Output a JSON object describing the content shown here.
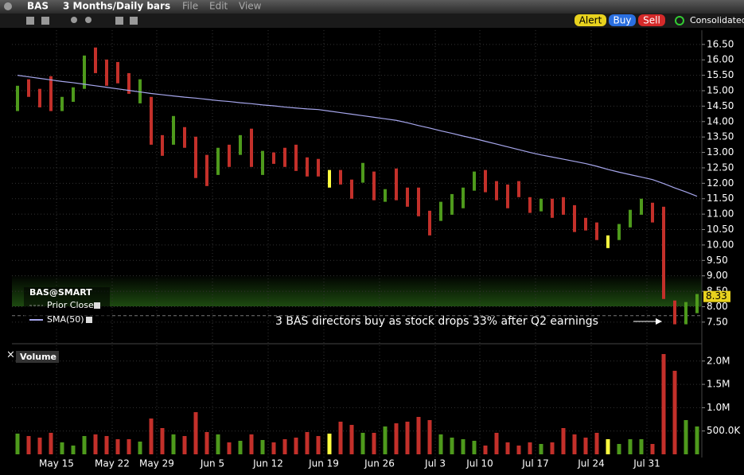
{
  "toolbar": {
    "symbol": "BAS",
    "period": "3 Months/Daily bars",
    "menus": [
      "File",
      "Edit",
      "View"
    ],
    "buttons": [
      "Alert",
      "Buy",
      "Sell"
    ],
    "feed": "Consolidated"
  },
  "chart_data": [
    {
      "type": "hilo",
      "name": "BAS@SMART",
      "categories": [
        null,
        null,
        null,
        "May 15",
        null,
        null,
        null,
        null,
        "May 22",
        null,
        null,
        null,
        "May 29",
        null,
        null,
        null,
        null,
        "Jun 5",
        null,
        null,
        null,
        null,
        "Jun 12",
        null,
        null,
        null,
        null,
        "Jun 19",
        null,
        null,
        null,
        null,
        "Jun 26",
        null,
        null,
        null,
        null,
        "Jul 3",
        null,
        null,
        null,
        "Jul 10",
        null,
        null,
        null,
        null,
        "Jul 17",
        null,
        null,
        null,
        null,
        "Jul 24",
        null,
        null,
        null,
        null,
        "Jul 31",
        null,
        null,
        null,
        null,
        null
      ],
      "high": [
        15.16,
        15.37,
        15.06,
        15.47,
        14.8,
        15.11,
        16.14,
        16.4,
        16.01,
        15.93,
        15.57,
        15.37,
        14.8,
        13.56,
        14.18,
        13.82,
        13.51,
        12.92,
        13.15,
        13.25,
        13.56,
        13.77,
        13.05,
        13.0,
        13.15,
        13.25,
        12.84,
        12.79,
        12.43,
        12.43,
        12.12,
        12.66,
        12.38,
        11.81,
        12.48,
        11.86,
        11.86,
        11.11,
        11.4,
        11.65,
        11.86,
        12.38,
        12.43,
        12.07,
        11.96,
        12.07,
        11.55,
        11.5,
        11.5,
        11.55,
        11.29,
        10.88,
        10.73,
        10.31,
        10.68,
        11.14,
        11.5,
        11.37,
        11.24,
        8.2,
        8.15,
        8.41
      ],
      "low": [
        14.34,
        14.8,
        14.46,
        14.34,
        14.34,
        14.64,
        15.06,
        15.57,
        15.16,
        15.24,
        14.9,
        14.59,
        13.25,
        12.89,
        13.25,
        13.15,
        12.17,
        11.91,
        12.27,
        12.53,
        12.92,
        12.53,
        12.27,
        12.63,
        12.53,
        12.4,
        12.22,
        12.22,
        11.86,
        11.96,
        11.5,
        12.02,
        11.45,
        11.4,
        11.45,
        11.24,
        10.93,
        10.31,
        10.78,
        10.98,
        11.19,
        11.76,
        11.71,
        11.45,
        11.19,
        11.55,
        11.04,
        11.09,
        10.88,
        10.98,
        10.42,
        10.47,
        10.16,
        9.9,
        10.16,
        10.57,
        10.98,
        10.73,
        8.25,
        7.43,
        7.43,
        7.79
      ],
      "colors": [
        "#4e9a1c",
        "#c3302a",
        "#c3302a",
        "#c3302a",
        "#4e9a1c",
        "#4e9a1c",
        "#4e9a1c",
        "#c3302a",
        "#c3302a",
        "#c3302a",
        "#c3302a",
        "#4e9a1c",
        "#c3302a",
        "#c3302a",
        "#4e9a1c",
        "#c3302a",
        "#c3302a",
        "#c3302a",
        "#4e9a1c",
        "#c3302a",
        "#4e9a1c",
        "#c3302a",
        "#4e9a1c",
        "#c3302a",
        "#c3302a",
        "#c3302a",
        "#c3302a",
        "#c3302a",
        "#ffff40",
        "#c3302a",
        "#c3302a",
        "#4e9a1c",
        "#c3302a",
        "#4e9a1c",
        "#c3302a",
        "#c3302a",
        "#c3302a",
        "#c3302a",
        "#4e9a1c",
        "#4e9a1c",
        "#4e9a1c",
        "#4e9a1c",
        "#c3302a",
        "#c3302a",
        "#c3302a",
        "#c3302a",
        "#c3302a",
        "#4e9a1c",
        "#c3302a",
        "#c3302a",
        "#c3302a",
        "#c3302a",
        "#c3302a",
        "#ffff40",
        "#4e9a1c",
        "#4e9a1c",
        "#4e9a1c",
        "#c3302a",
        "#c3302a",
        "#c3302a",
        "#4e9a1c",
        "#4e9a1c"
      ],
      "series": [
        {
          "name": "SMA(50)",
          "color": "#a6a6ec",
          "values": [
            15.5,
            15.45,
            15.4,
            15.35,
            15.3,
            15.26,
            15.21,
            15.16,
            15.11,
            15.06,
            15.01,
            14.96,
            14.91,
            14.87,
            14.83,
            14.79,
            14.76,
            14.72,
            14.68,
            14.65,
            14.61,
            14.58,
            14.54,
            14.51,
            14.47,
            14.44,
            14.41,
            14.39,
            14.34,
            14.29,
            14.24,
            14.19,
            14.14,
            14.09,
            14.04,
            13.96,
            13.87,
            13.79,
            13.7,
            13.62,
            13.53,
            13.45,
            13.36,
            13.27,
            13.18,
            13.09,
            13.0,
            12.92,
            12.85,
            12.78,
            12.71,
            12.64,
            12.55,
            12.45,
            12.36,
            12.28,
            12.2,
            12.12,
            11.99,
            11.85,
            11.72,
            11.58
          ]
        }
      ],
      "prior_close_label": "Prior Close",
      "prior_close": 7.71,
      "last_price": 8.33,
      "annotation": "3 BAS directors buy as stock drops 33% after Q2 earnings",
      "ylim": [
        6.8,
        16.96
      ],
      "yticks": [
        {
          "value": 7.5,
          "label": "7.50"
        },
        {
          "value": 8,
          "label": "8.00"
        },
        {
          "value": 8.5,
          "label": "8.50"
        },
        {
          "value": 9,
          "label": "9.00"
        },
        {
          "value": 9.5,
          "label": "9.50"
        },
        {
          "value": 10,
          "label": "10.00"
        },
        {
          "value": 10.5,
          "label": "10.50"
        },
        {
          "value": 11,
          "label": "11.00"
        },
        {
          "value": 11.5,
          "label": "11.50"
        },
        {
          "value": 12,
          "label": "12.00"
        },
        {
          "value": 12.5,
          "label": "12.50"
        },
        {
          "value": 13,
          "label": "13.00"
        },
        {
          "value": 13.5,
          "label": "13.50"
        },
        {
          "value": 14,
          "label": "14.00"
        },
        {
          "value": 14.5,
          "label": "14.50"
        },
        {
          "value": 15,
          "label": "15.00"
        },
        {
          "value": 15.5,
          "label": "15.50"
        },
        {
          "value": 16,
          "label": "16.00"
        },
        {
          "value": 16.5,
          "label": "16.50"
        }
      ],
      "grid": true
    },
    {
      "type": "bar",
      "name": "Volume",
      "values": [
        444000,
        392000,
        358000,
        461000,
        256000,
        188000,
        392000,
        427000,
        392000,
        324000,
        324000,
        273000,
        768000,
        563000,
        427000,
        392000,
        904000,
        478000,
        427000,
        256000,
        290000,
        427000,
        307000,
        256000,
        324000,
        358000,
        478000,
        392000,
        444000,
        700000,
        631000,
        461000,
        461000,
        597000,
        665000,
        700000,
        802000,
        734000,
        427000,
        358000,
        324000,
        290000,
        188000,
        461000,
        256000,
        188000,
        256000,
        222000,
        256000,
        563000,
        427000,
        358000,
        461000,
        324000,
        222000,
        324000,
        324000,
        222000,
        2150000,
        1791000,
        734000,
        597000
      ],
      "ylim": [
        0,
        2235000
      ],
      "yticks": [
        {
          "value": 500000,
          "label": "500.0K"
        },
        {
          "value": 1000000,
          "label": "1.0M"
        },
        {
          "value": 1500000,
          "label": "1.5M"
        },
        {
          "value": 2000000,
          "label": "2.0M"
        }
      ],
      "grid": true
    }
  ]
}
